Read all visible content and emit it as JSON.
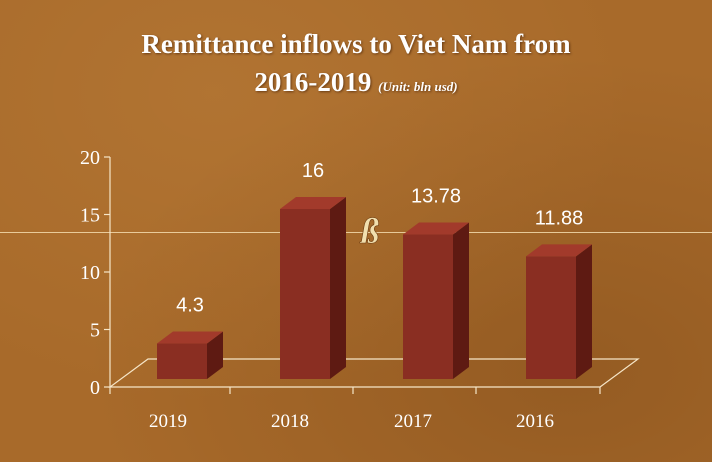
{
  "title_line1": "Remittance inflows to Viet Nam from",
  "title_line2": "2016-2019",
  "unit_note": "(Unit: bln usd)",
  "colors": {
    "bar_front": "#8a2e22",
    "bar_side": "#5e1a12",
    "bar_top": "#a23a2b",
    "axis": "#f6e6c8",
    "logo": "#f1dfae"
  },
  "logo_icon": "ornament-logo-icon",
  "chart_data": {
    "type": "bar",
    "categories": [
      "2019",
      "2018",
      "2017",
      "2016"
    ],
    "values": [
      4.3,
      16,
      13.78,
      11.88
    ],
    "value_labels": [
      "4.3",
      "16",
      "13.78",
      "11.88"
    ],
    "ylim": [
      0,
      20
    ],
    "yticks": [
      "0",
      "5",
      "10",
      "15",
      "20"
    ],
    "grid": false,
    "legend": "none",
    "xlabel": "",
    "ylabel": ""
  }
}
